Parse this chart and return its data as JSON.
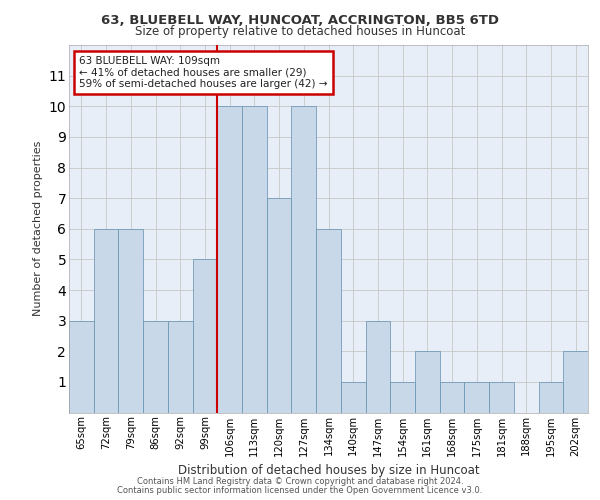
{
  "title_line1": "63, BLUEBELL WAY, HUNCOAT, ACCRINGTON, BB5 6TD",
  "title_line2": "Size of property relative to detached houses in Huncoat",
  "xlabel": "Distribution of detached houses by size in Huncoat",
  "ylabel": "Number of detached properties",
  "categories": [
    "65sqm",
    "72sqm",
    "79sqm",
    "86sqm",
    "92sqm",
    "99sqm",
    "106sqm",
    "113sqm",
    "120sqm",
    "127sqm",
    "134sqm",
    "140sqm",
    "147sqm",
    "154sqm",
    "161sqm",
    "168sqm",
    "175sqm",
    "181sqm",
    "188sqm",
    "195sqm",
    "202sqm"
  ],
  "values": [
    3,
    6,
    6,
    3,
    3,
    5,
    10,
    10,
    7,
    10,
    6,
    1,
    3,
    1,
    2,
    1,
    1,
    1,
    0,
    1,
    2
  ],
  "bar_color": "#c8d8e8",
  "bar_edge_color": "#6090b0",
  "vline_x_index": 6,
  "vline_color": "#cc0000",
  "annotation_text": "63 BLUEBELL WAY: 109sqm\n← 41% of detached houses are smaller (29)\n59% of semi-detached houses are larger (42) →",
  "annotation_box_color": "#ffffff",
  "annotation_box_edge_color": "#cc0000",
  "ylim": [
    0,
    12
  ],
  "yticks": [
    0,
    1,
    2,
    3,
    4,
    5,
    6,
    7,
    8,
    9,
    10,
    11,
    12
  ],
  "grid_color": "#cccccc",
  "background_color": "#e8eef8",
  "footer_line1": "Contains HM Land Registry data © Crown copyright and database right 2024.",
  "footer_line2": "Contains public sector information licensed under the Open Government Licence v3.0."
}
